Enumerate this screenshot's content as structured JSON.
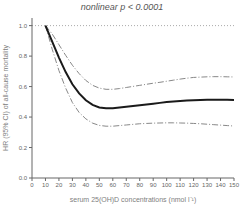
{
  "chart_data": {
    "type": "line",
    "title": "nonlinear p < 0.0001",
    "x_label": "serum 25(OH)D concentrations (nmol l⁻¹)",
    "y_label": "HR (95% CI) of all-cause mortality",
    "x": [
      10,
      15,
      20,
      25,
      30,
      35,
      40,
      45,
      50,
      55,
      60,
      65,
      70,
      75,
      80,
      85,
      90,
      95,
      100,
      105,
      110,
      115,
      120,
      125,
      130,
      135,
      140,
      145,
      150
    ],
    "series": [
      {
        "color": "#888888",
        "line_style": "dashdot",
        "values": [
          1.0,
          0.945,
          0.875,
          0.805,
          0.74,
          0.685,
          0.64,
          0.608,
          0.59,
          0.582,
          0.582,
          0.587,
          0.594,
          0.601,
          0.608,
          0.615,
          0.622,
          0.628,
          0.635,
          0.642,
          0.649,
          0.655,
          0.66,
          0.662,
          0.664,
          0.665,
          0.665,
          0.664,
          0.663
        ]
      },
      {
        "color": "#888888",
        "line_style": "dashdot",
        "values": [
          1.0,
          0.845,
          0.705,
          0.59,
          0.495,
          0.43,
          0.388,
          0.36,
          0.345,
          0.34,
          0.34,
          0.344,
          0.348,
          0.352,
          0.356,
          0.358,
          0.36,
          0.361,
          0.362,
          0.362,
          0.361,
          0.36,
          0.358,
          0.356,
          0.353,
          0.35,
          0.347,
          0.344,
          0.341
        ]
      },
      {
        "color": "#1a1a1a",
        "line_style": "solid",
        "values": [
          1.0,
          0.895,
          0.79,
          0.695,
          0.615,
          0.555,
          0.51,
          0.48,
          0.463,
          0.458,
          0.458,
          0.463,
          0.468,
          0.473,
          0.478,
          0.483,
          0.488,
          0.493,
          0.498,
          0.502,
          0.505,
          0.508,
          0.51,
          0.512,
          0.513,
          0.514,
          0.514,
          0.513,
          0.512
        ]
      }
    ],
    "xlim": [
      0,
      150
    ],
    "ylim": [
      0,
      1.05
    ],
    "xticks": [
      0,
      10,
      20,
      30,
      40,
      50,
      60,
      70,
      80,
      90,
      100,
      110,
      120,
      130,
      140,
      150
    ],
    "yticks": [
      {
        "value": 0,
        "label": "0.0"
      },
      0.2,
      0.4,
      0.6,
      0.8,
      {
        "value": 1.0,
        "label": "1.0"
      }
    ],
    "reference_lines": [
      {
        "y": 1.0,
        "color": "#aaaaaa",
        "line_style": "dotted"
      }
    ],
    "grid": false
  }
}
